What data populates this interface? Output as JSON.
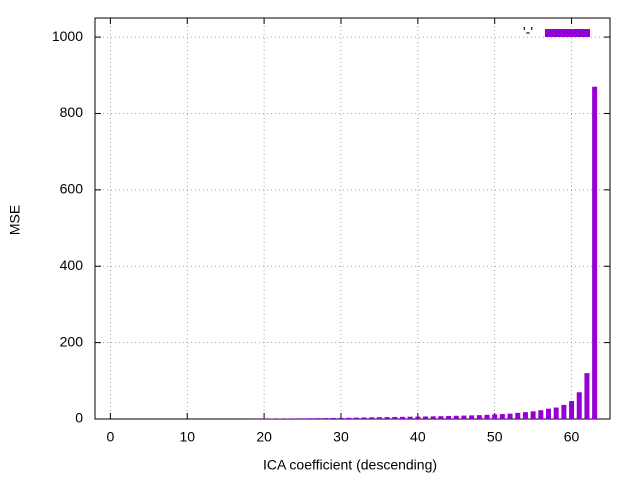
{
  "chart_data": {
    "type": "bar",
    "x_label": "ICA coefficient (descending)",
    "y_label": "MSE",
    "x": [
      0,
      1,
      2,
      3,
      4,
      5,
      6,
      7,
      8,
      9,
      10,
      11,
      12,
      13,
      14,
      15,
      16,
      17,
      18,
      19,
      20,
      21,
      22,
      23,
      24,
      25,
      26,
      27,
      28,
      29,
      30,
      31,
      32,
      33,
      34,
      35,
      36,
      37,
      38,
      39,
      40,
      41,
      42,
      43,
      44,
      45,
      46,
      47,
      48,
      49,
      50,
      51,
      52,
      53,
      54,
      55,
      56,
      57,
      58,
      59,
      60,
      61,
      62,
      63
    ],
    "series": [
      {
        "name": "'-'",
        "color": "#9400d3",
        "values": [
          0,
          0,
          0,
          0,
          0,
          0,
          0,
          0,
          0,
          0,
          0,
          0,
          0,
          0,
          0,
          0,
          0,
          0,
          0.5,
          0.5,
          0.8,
          1,
          1.2,
          1.4,
          1.6,
          1.8,
          2,
          2.2,
          2.5,
          2.8,
          3,
          3.3,
          3.6,
          4,
          4.4,
          4.8,
          5,
          5.3,
          5.6,
          6,
          6.3,
          6.6,
          7,
          7.4,
          8,
          8.5,
          9,
          9.5,
          10,
          11,
          12,
          13,
          14,
          16,
          18,
          20,
          23,
          27,
          30,
          37,
          47,
          70,
          120,
          870
        ]
      }
    ],
    "xlim": [
      -2,
      65
    ],
    "ylim": [
      0,
      1050
    ],
    "xticks": [
      0,
      10,
      20,
      30,
      40,
      50,
      60
    ],
    "yticks": [
      0,
      200,
      400,
      600,
      800,
      1000
    ],
    "grid": true,
    "legend": "top-right"
  }
}
